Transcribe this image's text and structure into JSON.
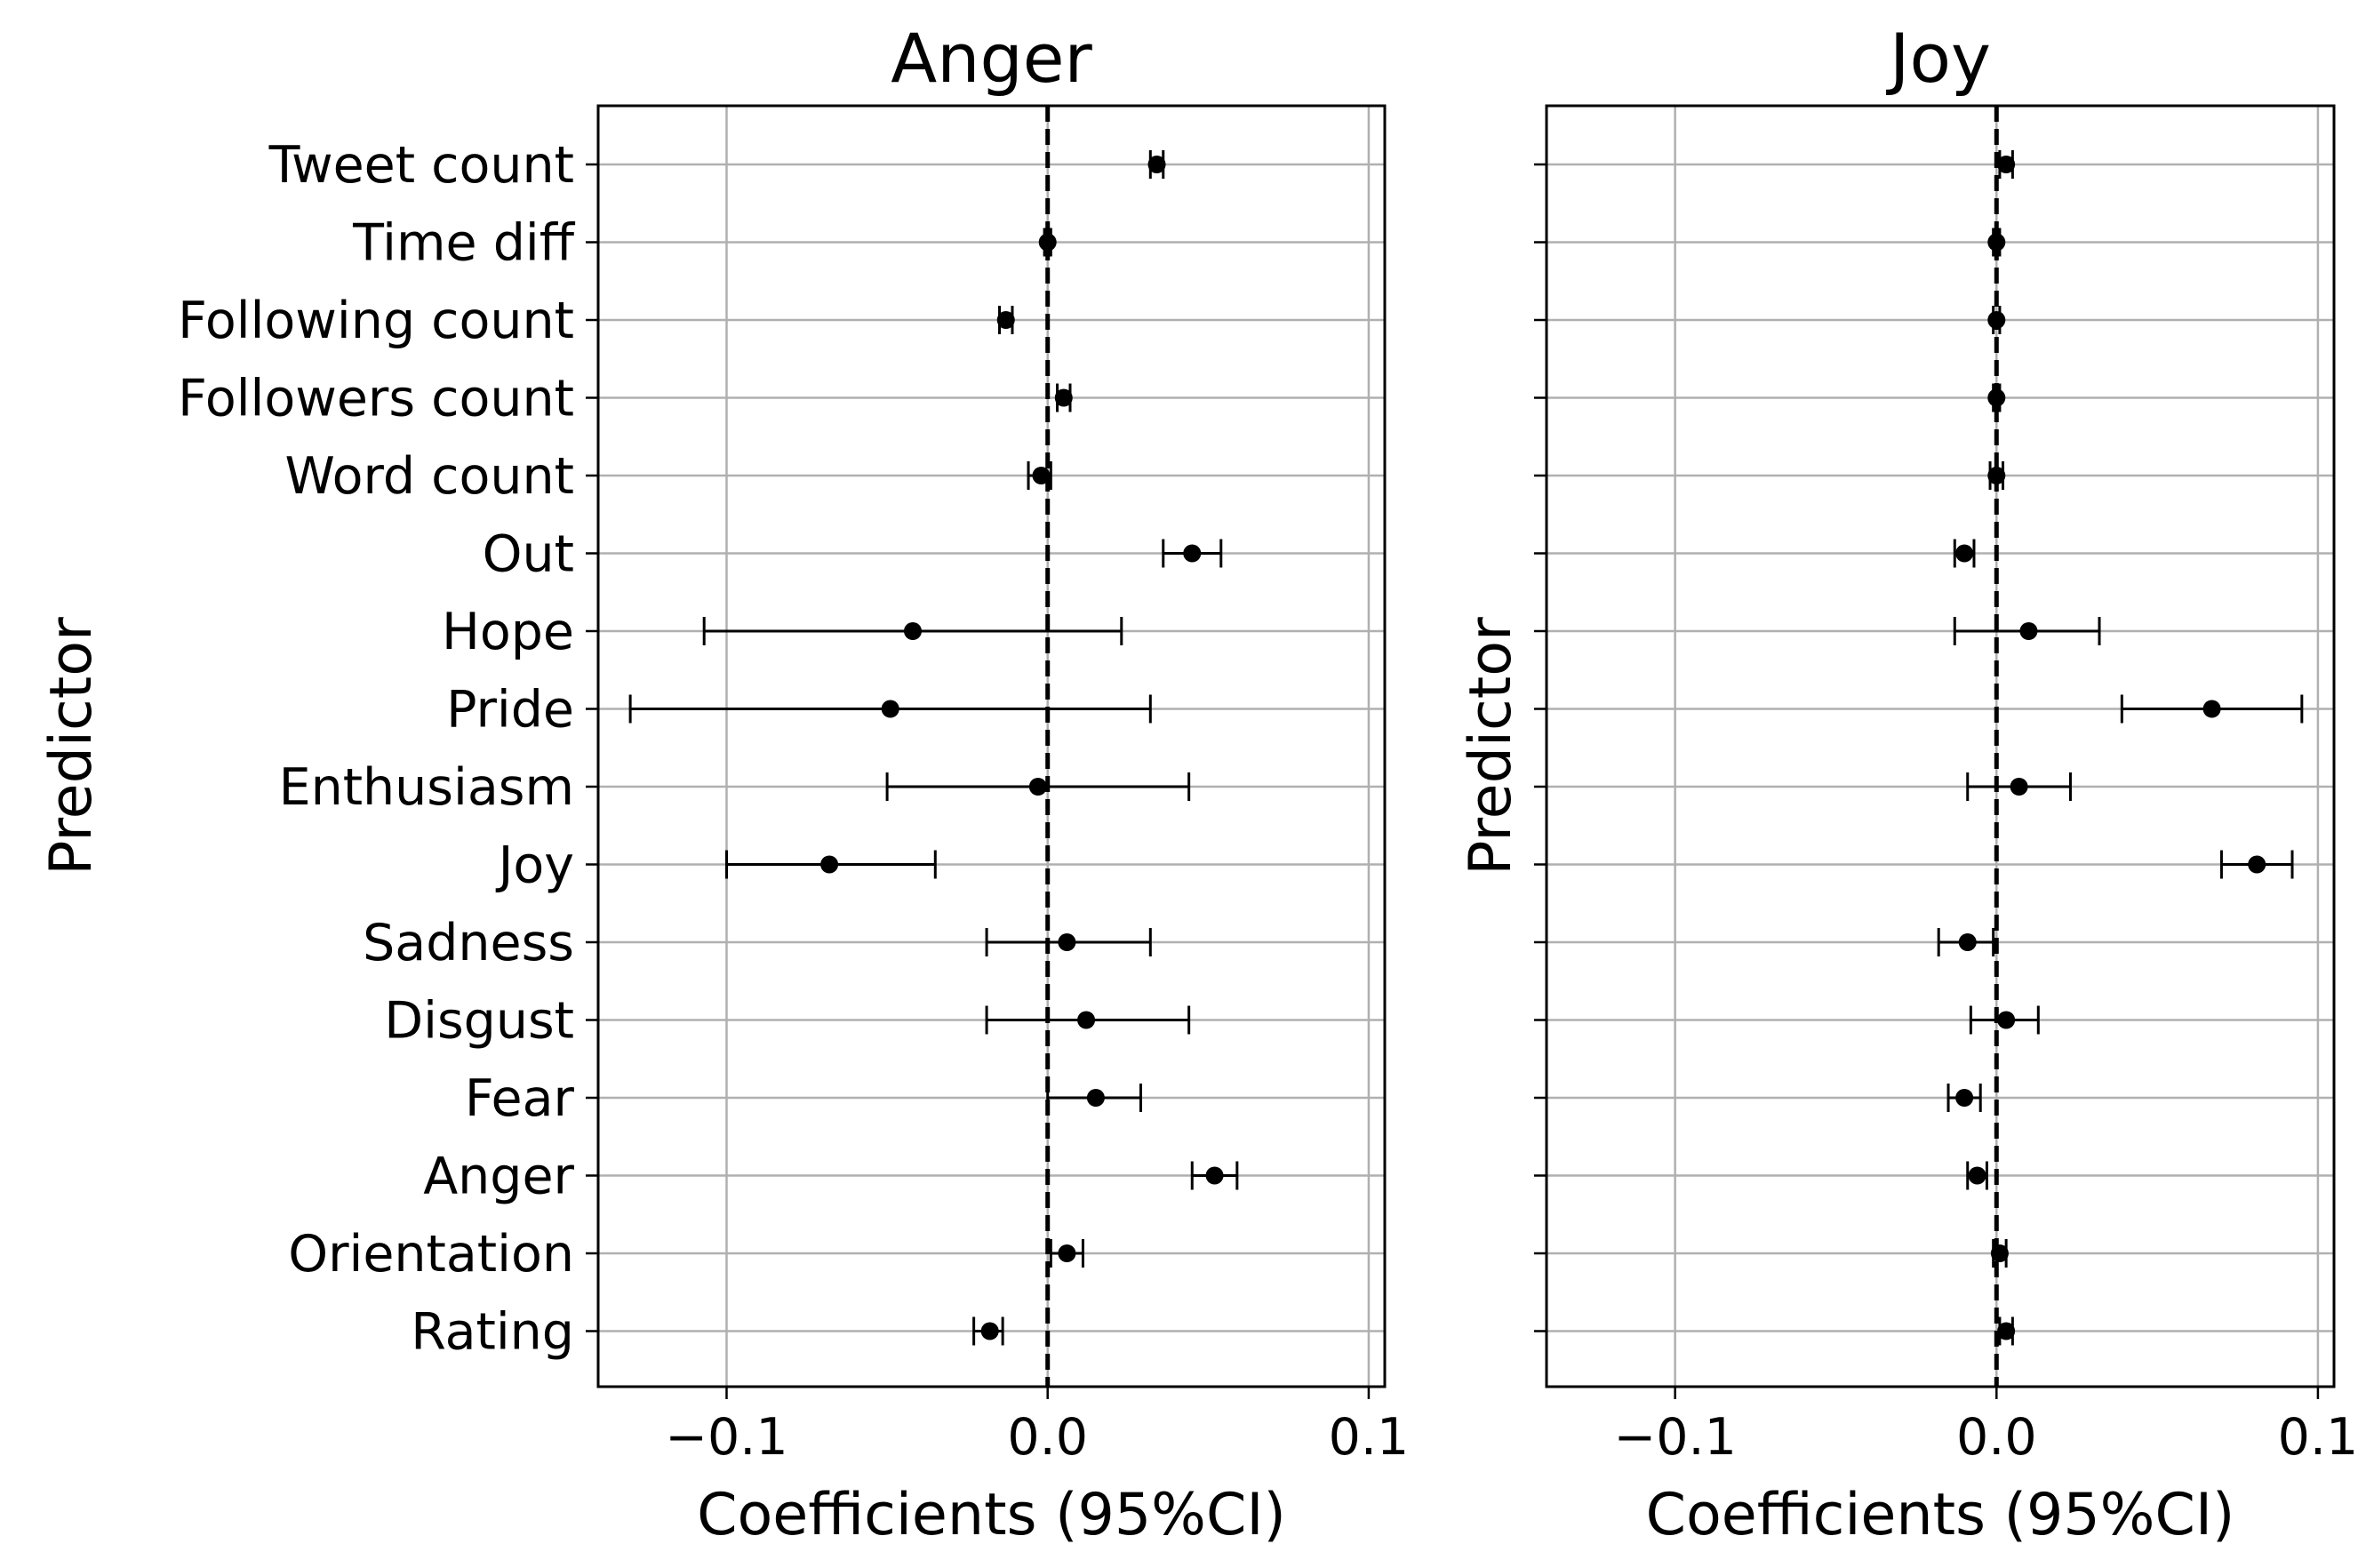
{
  "chart_data": [
    {
      "type": "errorbar",
      "title": "Anger",
      "xlabel": "Coefficients (95%CI)",
      "ylabel": "Predictor",
      "xlim": [
        -0.14,
        0.105
      ],
      "xticks": [
        -0.1,
        0.0,
        0.1
      ],
      "xtick_labels": [
        "−0.1",
        "0.0",
        "0.1"
      ],
      "reference_line": 0.0,
      "grid": true,
      "predictors": [
        "Tweet count",
        "Time diff",
        "Following count",
        "Followers count",
        "Word count",
        "Out",
        "Hope",
        "Pride",
        "Enthusiasm",
        "Joy",
        "Sadness",
        "Disgust",
        "Fear",
        "Anger",
        "Orientation",
        "Rating"
      ],
      "estimates": [
        0.034,
        0.0,
        -0.013,
        0.005,
        -0.002,
        0.045,
        -0.042,
        -0.049,
        -0.003,
        -0.068,
        0.006,
        0.012,
        0.015,
        0.052,
        0.006,
        -0.018
      ],
      "ci_low": [
        0.032,
        -0.001,
        -0.015,
        0.003,
        -0.006,
        0.036,
        -0.107,
        -0.13,
        -0.05,
        -0.1,
        -0.019,
        -0.019,
        0.0,
        0.045,
        0.001,
        -0.023
      ],
      "ci_high": [
        0.036,
        0.001,
        -0.011,
        0.007,
        0.001,
        0.054,
        0.023,
        0.032,
        0.044,
        -0.035,
        0.032,
        0.044,
        0.029,
        0.059,
        0.011,
        -0.014
      ]
    },
    {
      "type": "errorbar",
      "title": "Joy",
      "xlabel": "Coefficients (95%CI)",
      "ylabel": "Predictor",
      "xlim": [
        -0.14,
        0.105
      ],
      "xticks": [
        -0.1,
        0.0,
        0.1
      ],
      "xtick_labels": [
        "−0.1",
        "0.0",
        "0.1"
      ],
      "reference_line": 0.0,
      "grid": true,
      "predictors": [
        "Tweet count",
        "Time diff",
        "Following count",
        "Followers count",
        "Word count",
        "Out",
        "Hope",
        "Pride",
        "Enthusiasm",
        "Joy",
        "Sadness",
        "Disgust",
        "Fear",
        "Anger",
        "Orientation",
        "Rating"
      ],
      "estimates": [
        0.003,
        0.0,
        0.0,
        0.0,
        0.0,
        -0.01,
        0.01,
        0.067,
        0.007,
        0.081,
        -0.009,
        0.003,
        -0.01,
        -0.006,
        0.001,
        0.003
      ],
      "ci_low": [
        0.001,
        -0.001,
        -0.001,
        -0.001,
        -0.002,
        -0.013,
        -0.013,
        0.039,
        -0.009,
        0.07,
        -0.018,
        -0.008,
        -0.015,
        -0.009,
        -0.001,
        0.001
      ],
      "ci_high": [
        0.005,
        0.001,
        0.001,
        0.001,
        0.002,
        -0.007,
        0.032,
        0.095,
        0.023,
        0.092,
        -0.001,
        0.013,
        -0.005,
        -0.003,
        0.003,
        0.005
      ]
    }
  ]
}
